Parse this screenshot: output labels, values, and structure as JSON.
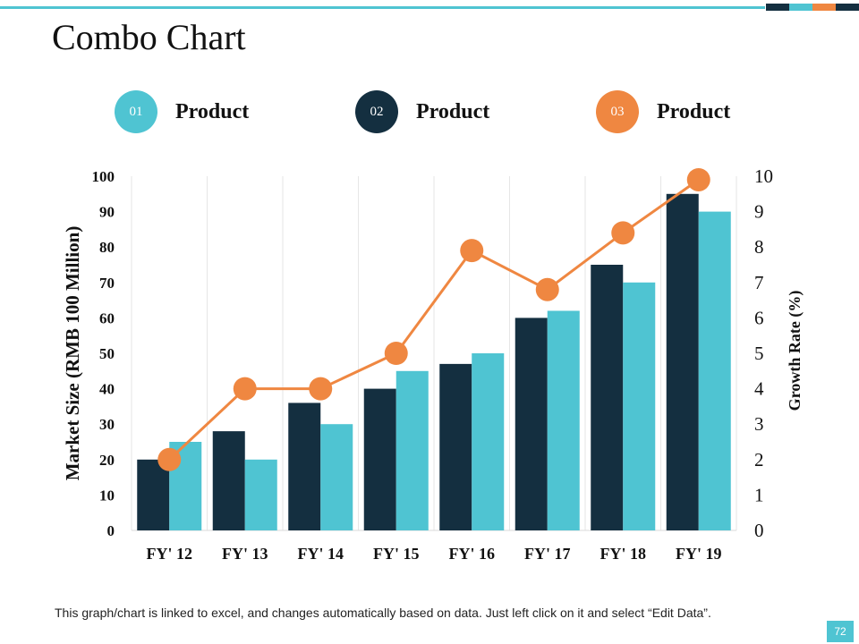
{
  "slide": {
    "title": "Combo Chart",
    "footnote": "This graph/chart is linked to excel, and changes automatically based on data. Just left click on it and select “Edit Data”.",
    "page_number": "72"
  },
  "legend": [
    {
      "number": "01",
      "label": "Product",
      "color": "#4fc4d2"
    },
    {
      "number": "02",
      "label": "Product",
      "color": "#142f40"
    },
    {
      "number": "03",
      "label": "Product",
      "color": "#ef8741"
    }
  ],
  "colors": {
    "accent": "#4fc4d2",
    "dark": "#142f40",
    "orange": "#ef8741",
    "grid": "#e6e6e6"
  },
  "chart_data": {
    "type": "bar",
    "title": "",
    "categories": [
      "FY' 12",
      "FY' 13",
      "FY' 14",
      "FY' 15",
      "FY' 16",
      "FY' 17",
      "FY' 18",
      "FY' 19"
    ],
    "series": [
      {
        "name": "Product 02",
        "type": "bar",
        "axis": "left",
        "values": [
          20,
          28,
          36,
          40,
          47,
          60,
          75,
          95
        ]
      },
      {
        "name": "Product 01",
        "type": "bar",
        "axis": "left",
        "values": [
          25,
          20,
          30,
          45,
          50,
          62,
          70,
          90
        ]
      },
      {
        "name": "Product 03",
        "type": "line",
        "axis": "right",
        "values": [
          2,
          4,
          4,
          5,
          7.9,
          6.8,
          8.4,
          9.9
        ]
      }
    ],
    "ylabel": "Market Size (RMB 100 Million)",
    "ylim": [
      0,
      100
    ],
    "yticks": [
      "0",
      "10",
      "20",
      "30",
      "40",
      "50",
      "60",
      "70",
      "80",
      "90",
      "100"
    ],
    "y2label": "Growth Rate (%)",
    "y2lim": [
      0,
      10
    ],
    "y2ticks": [
      "0",
      "1",
      "2",
      "3",
      "4",
      "5",
      "6",
      "7",
      "8",
      "9",
      "10"
    ],
    "grid": "vertical"
  }
}
